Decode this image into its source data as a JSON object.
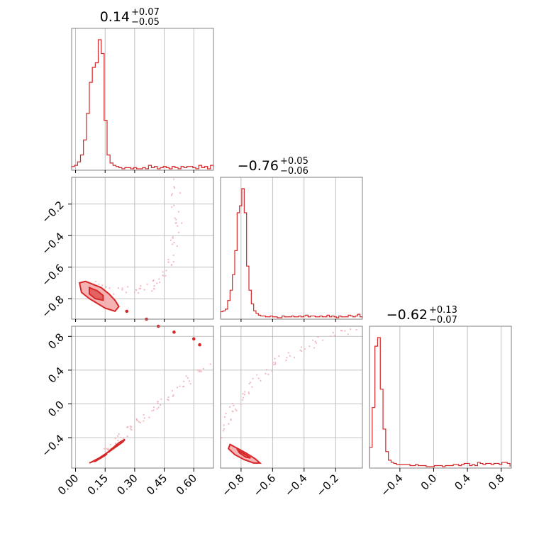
{
  "colors": {
    "primary": "#d62728",
    "light": "#f4a6a6",
    "scatter": "#f2b8bf"
  },
  "chart_data": {
    "type": "corner-plot",
    "parameters": [
      {
        "title": {
          "median": "0.14",
          "plus": "+0.07",
          "minus": "−0.05"
        },
        "range": [
          -0.02,
          0.7
        ],
        "ticks": [
          0.0,
          0.15,
          0.3,
          0.45,
          0.6
        ],
        "tick_labels": [
          "0.00",
          "0.15",
          "0.30",
          "0.45",
          "0.60"
        ]
      },
      {
        "title": {
          "median": "−0.76",
          "plus": "+0.05",
          "minus": "−0.06"
        },
        "range": [
          -0.93,
          -0.03
        ],
        "ticks": [
          -0.8,
          -0.6,
          -0.4,
          -0.2
        ],
        "tick_labels": [
          "−0.8",
          "−0.6",
          "−0.4",
          "−0.2"
        ]
      },
      {
        "title": {
          "median": "−0.62",
          "plus": "+0.13",
          "minus": "−0.07"
        },
        "range": [
          -0.76,
          0.92
        ],
        "ticks": [
          -0.4,
          0.0,
          0.4,
          0.8
        ],
        "tick_labels": [
          "−0.4",
          "0.0",
          "0.4",
          "0.8"
        ]
      }
    ],
    "histograms": [
      {
        "param": 0,
        "bin_edges": [
          -0.02,
          -0.005,
          0.01,
          0.025,
          0.04,
          0.055,
          0.07,
          0.085,
          0.1,
          0.115,
          0.13,
          0.145,
          0.16,
          0.175,
          0.19,
          0.205,
          0.22,
          0.235,
          0.25,
          0.265,
          0.28,
          0.295,
          0.31,
          0.325,
          0.34,
          0.355,
          0.37,
          0.385,
          0.4,
          0.415,
          0.43,
          0.445,
          0.46,
          0.475,
          0.49,
          0.505,
          0.52,
          0.535,
          0.55,
          0.565,
          0.58,
          0.595,
          0.61,
          0.625,
          0.64,
          0.655,
          0.67,
          0.685,
          0.7
        ],
        "counts": [
          2,
          3,
          6,
          12,
          25,
          48,
          75,
          88,
          92,
          112,
          100,
          42,
          12,
          5,
          3,
          2,
          1,
          0,
          1,
          1,
          0,
          1,
          0,
          0,
          1,
          0,
          3,
          1,
          2,
          0,
          1,
          2,
          1,
          0,
          2,
          1,
          0,
          2,
          1,
          2,
          2,
          1,
          0,
          3,
          1,
          2,
          0,
          3
        ]
      },
      {
        "param": 1,
        "bin_edges": [
          -0.93,
          -0.915,
          -0.9,
          -0.885,
          -0.87,
          -0.855,
          -0.84,
          -0.825,
          -0.81,
          -0.795,
          -0.78,
          -0.765,
          -0.75,
          -0.735,
          -0.72,
          -0.705,
          -0.69,
          -0.675,
          -0.66,
          -0.645,
          -0.63,
          -0.615,
          -0.6,
          -0.585,
          -0.57,
          -0.555,
          -0.54,
          -0.525,
          -0.51,
          -0.495,
          -0.48,
          -0.465,
          -0.45,
          -0.435,
          -0.42,
          -0.405,
          -0.39,
          -0.375,
          -0.36,
          -0.345,
          -0.33,
          -0.315,
          -0.3,
          -0.285,
          -0.27,
          -0.255,
          -0.24,
          -0.225,
          -0.21,
          -0.195,
          -0.18,
          -0.165,
          -0.15,
          -0.135,
          -0.12,
          -0.105,
          -0.09,
          -0.075,
          -0.06,
          -0.045,
          -0.03
        ],
        "counts": [
          7,
          8,
          10,
          20,
          32,
          50,
          78,
          122,
          130,
          150,
          122,
          60,
          32,
          16,
          8,
          5,
          3,
          2,
          2,
          1,
          1,
          2,
          1,
          1,
          0,
          0,
          2,
          1,
          1,
          1,
          2,
          1,
          1,
          2,
          1,
          2,
          3,
          1,
          2,
          2,
          1,
          1,
          2,
          1,
          1,
          3,
          1,
          2,
          1,
          0,
          2,
          1,
          1,
          1,
          3,
          2,
          1,
          2,
          4,
          1
        ]
      },
      {
        "param": 2,
        "bin_edges": [
          -0.76,
          -0.728,
          -0.696,
          -0.664,
          -0.632,
          -0.6,
          -0.568,
          -0.536,
          -0.504,
          -0.472,
          -0.44,
          -0.408,
          -0.376,
          -0.344,
          -0.312,
          -0.28,
          -0.248,
          -0.216,
          -0.184,
          -0.152,
          -0.12,
          -0.088,
          -0.056,
          -0.024,
          0.008,
          0.04,
          0.072,
          0.104,
          0.136,
          0.168,
          0.2,
          0.232,
          0.264,
          0.296,
          0.328,
          0.36,
          0.392,
          0.424,
          0.456,
          0.488,
          0.52,
          0.552,
          0.584,
          0.616,
          0.648,
          0.68,
          0.712,
          0.744,
          0.776,
          0.808,
          0.84,
          0.872,
          0.904
        ],
        "counts": [
          18,
          55,
          112,
          120,
          72,
          35,
          14,
          6,
          4,
          3,
          2,
          2,
          2,
          2,
          2,
          1,
          1,
          2,
          1,
          1,
          1,
          0,
          0,
          0,
          1,
          1,
          1,
          0,
          1,
          1,
          1,
          2,
          2,
          1,
          2,
          3,
          3,
          1,
          2,
          1,
          4,
          3,
          2,
          3,
          3,
          2,
          3,
          3,
          2,
          4,
          4,
          3
        ]
      }
    ],
    "contours": [
      {
        "x_param": 0,
        "y_param": 1,
        "outer": [
          [
            0.02,
            -0.7
          ],
          [
            0.05,
            -0.69
          ],
          [
            0.09,
            -0.71
          ],
          [
            0.13,
            -0.73
          ],
          [
            0.17,
            -0.77
          ],
          [
            0.2,
            -0.81
          ],
          [
            0.22,
            -0.85
          ],
          [
            0.2,
            -0.88
          ],
          [
            0.15,
            -0.86
          ],
          [
            0.11,
            -0.83
          ],
          [
            0.07,
            -0.8
          ],
          [
            0.03,
            -0.76
          ]
        ],
        "inner": [
          [
            0.07,
            -0.73
          ],
          [
            0.11,
            -0.75
          ],
          [
            0.14,
            -0.78
          ],
          [
            0.14,
            -0.81
          ],
          [
            0.1,
            -0.8
          ],
          [
            0.07,
            -0.77
          ]
        ],
        "strong_points": [
          [
            0.36,
            -0.93
          ],
          [
            0.26,
            -0.88
          ]
        ]
      },
      {
        "x_param": 0,
        "y_param": 2,
        "outer": [
          [
            0.08,
            -0.69
          ],
          [
            0.12,
            -0.64
          ],
          [
            0.18,
            -0.55
          ],
          [
            0.24,
            -0.45
          ],
          [
            0.25,
            -0.42
          ],
          [
            0.22,
            -0.46
          ],
          [
            0.17,
            -0.56
          ],
          [
            0.12,
            -0.65
          ],
          [
            0.07,
            -0.7
          ]
        ],
        "inner": [
          [
            0.1,
            -0.68
          ],
          [
            0.15,
            -0.61
          ],
          [
            0.16,
            -0.59
          ],
          [
            0.13,
            -0.63
          ],
          [
            0.09,
            -0.68
          ]
        ],
        "strong_points": [
          [
            0.42,
            0.92
          ],
          [
            0.5,
            0.85
          ],
          [
            0.6,
            0.77
          ],
          [
            0.63,
            0.7
          ]
        ]
      },
      {
        "x_param": 1,
        "y_param": 2,
        "outer": [
          [
            -0.87,
            -0.48
          ],
          [
            -0.83,
            -0.52
          ],
          [
            -0.77,
            -0.58
          ],
          [
            -0.71,
            -0.65
          ],
          [
            -0.68,
            -0.7
          ],
          [
            -0.72,
            -0.7
          ],
          [
            -0.78,
            -0.66
          ],
          [
            -0.84,
            -0.6
          ],
          [
            -0.88,
            -0.53
          ]
        ],
        "inner": [
          [
            -0.82,
            -0.55
          ],
          [
            -0.77,
            -0.6
          ],
          [
            -0.74,
            -0.64
          ],
          [
            -0.77,
            -0.63
          ],
          [
            -0.81,
            -0.58
          ]
        ],
        "strong_points": []
      }
    ],
    "scatter_trails": [
      {
        "x_param": 0,
        "y_param": 1,
        "from": [
          0.05,
          -0.7
        ],
        "mid": [
          0.6,
          -0.95
        ],
        "to": [
          0.5,
          -0.05
        ]
      },
      {
        "x_param": 0,
        "y_param": 2,
        "from": [
          0.15,
          -0.6
        ],
        "mid": [
          0.3,
          -0.2
        ],
        "to": [
          0.7,
          0.5
        ]
      },
      {
        "x_param": 1,
        "y_param": 2,
        "from": [
          -0.92,
          -0.4
        ],
        "mid": [
          -0.8,
          0.5
        ],
        "to": [
          -0.05,
          0.9
        ]
      }
    ]
  }
}
